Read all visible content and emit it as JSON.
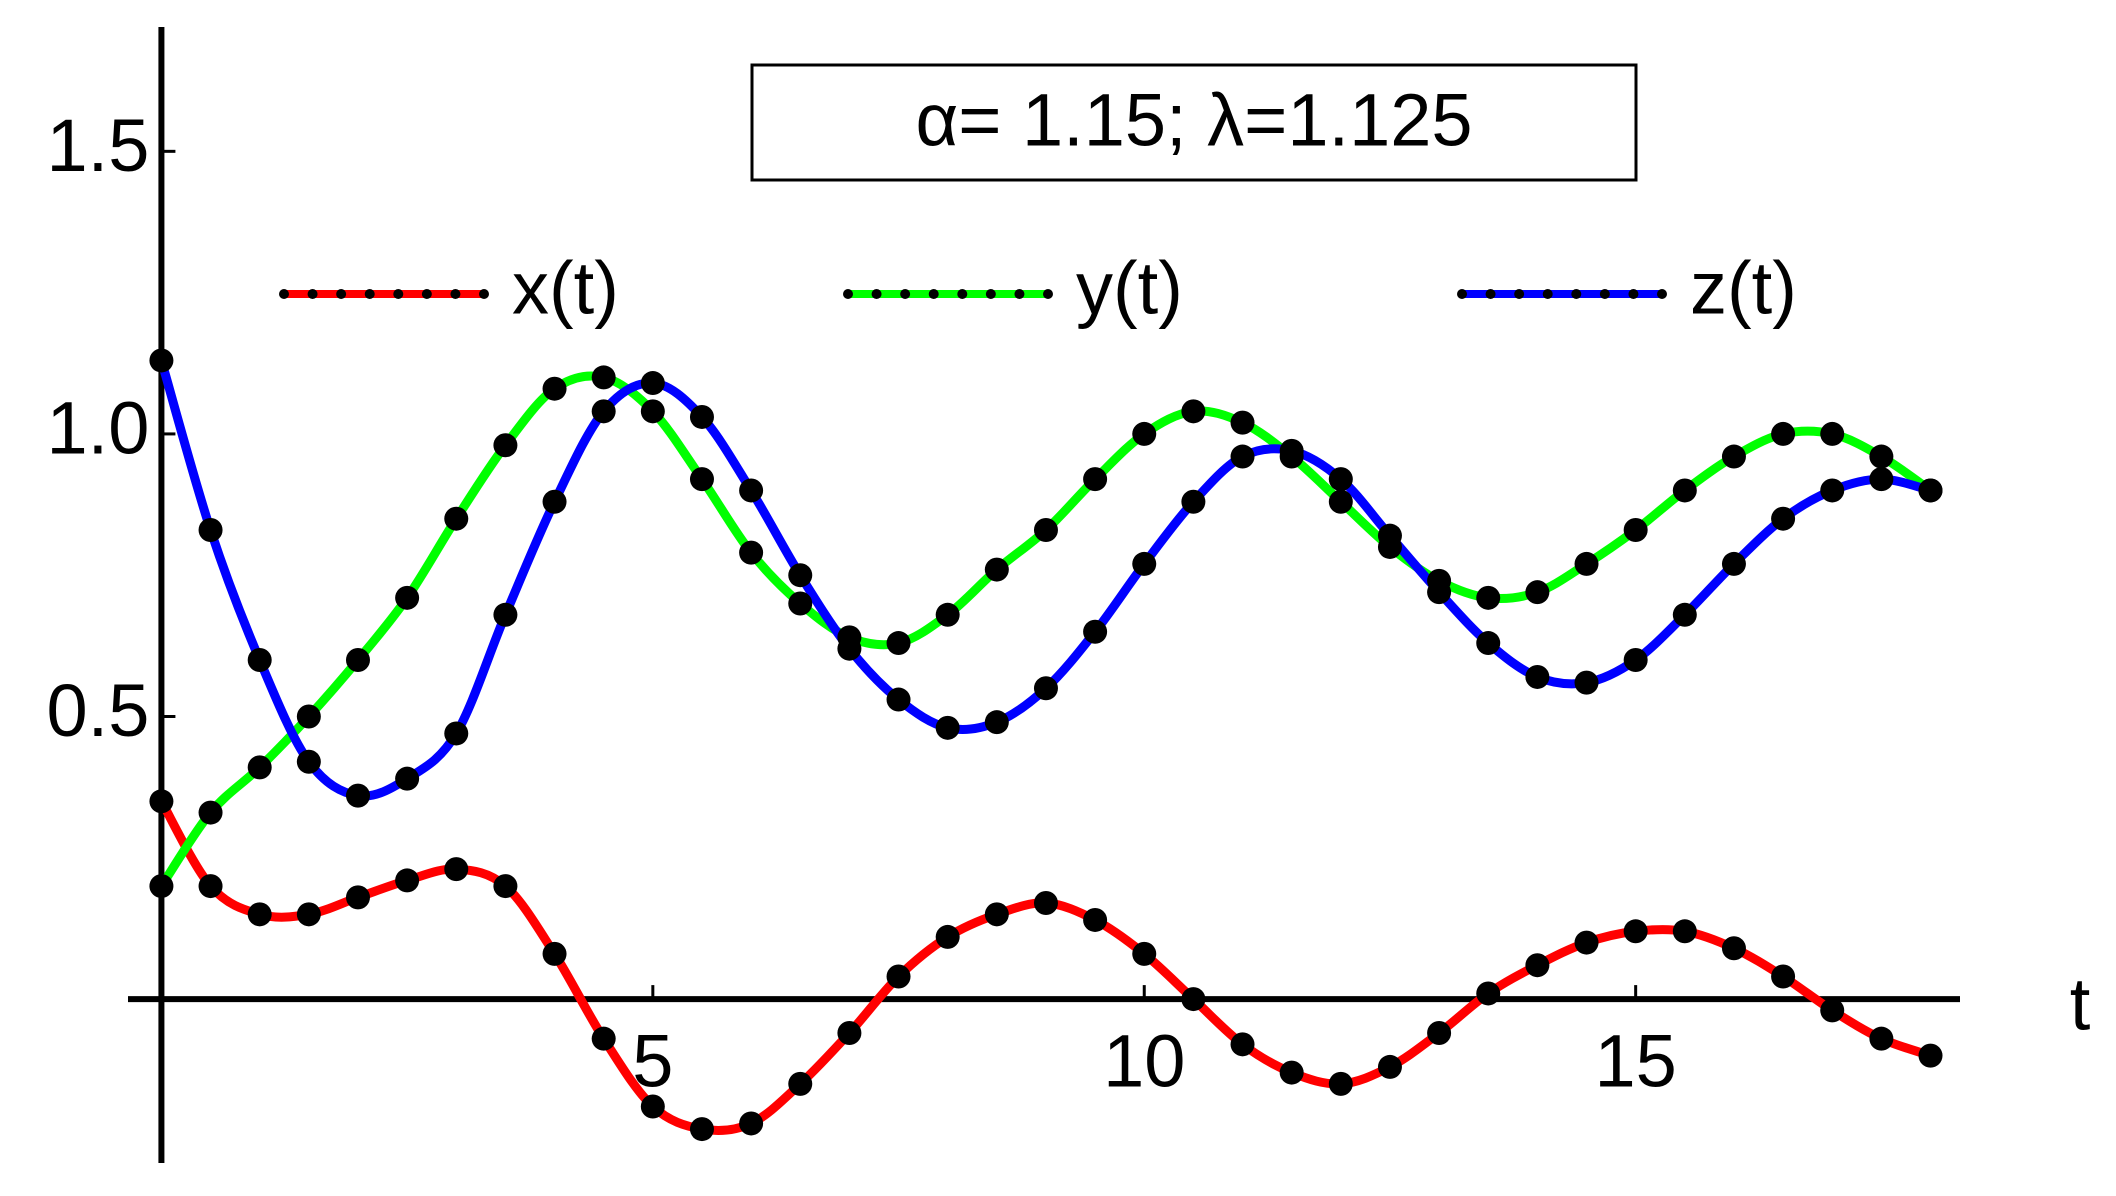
{
  "chart_data": {
    "type": "line",
    "annotation": "α= 1.15; λ=1.125",
    "x_label": "t",
    "x": [
      0,
      0.5,
      1,
      1.5,
      2,
      2.5,
      3,
      3.5,
      4,
      4.5,
      5,
      5.5,
      6,
      6.5,
      7,
      7.5,
      8,
      8.5,
      9,
      9.5,
      10,
      10.5,
      11,
      11.5,
      12,
      12.5,
      13,
      13.5,
      14,
      14.5,
      15,
      15.5,
      16,
      16.5,
      17,
      17.5,
      18
    ],
    "series": [
      {
        "name": "x(t)",
        "color": "#ff0000",
        "values": [
          0.35,
          0.2,
          0.15,
          0.15,
          0.18,
          0.21,
          0.23,
          0.2,
          0.08,
          -0.07,
          -0.19,
          -0.23,
          -0.22,
          -0.15,
          -0.06,
          0.04,
          0.11,
          0.15,
          0.17,
          0.14,
          0.08,
          0.0,
          -0.08,
          -0.13,
          -0.15,
          -0.12,
          -0.06,
          0.01,
          0.06,
          0.1,
          0.12,
          0.12,
          0.09,
          0.04,
          -0.02,
          -0.07,
          -0.1
        ]
      },
      {
        "name": "y(t)",
        "color": "#00ff00",
        "values": [
          0.2,
          0.33,
          0.41,
          0.5,
          0.6,
          0.71,
          0.85,
          0.98,
          1.08,
          1.1,
          1.04,
          0.92,
          0.79,
          0.7,
          0.64,
          0.63,
          0.68,
          0.76,
          0.83,
          0.92,
          1.0,
          1.04,
          1.02,
          0.96,
          0.88,
          0.8,
          0.74,
          0.71,
          0.72,
          0.77,
          0.83,
          0.9,
          0.96,
          1.0,
          1.0,
          0.96,
          0.9
        ]
      },
      {
        "name": "z(t)",
        "color": "#0000ff",
        "values": [
          1.13,
          0.83,
          0.6,
          0.42,
          0.36,
          0.39,
          0.47,
          0.68,
          0.88,
          1.04,
          1.09,
          1.03,
          0.9,
          0.75,
          0.62,
          0.53,
          0.48,
          0.49,
          0.55,
          0.65,
          0.77,
          0.88,
          0.96,
          0.97,
          0.92,
          0.82,
          0.72,
          0.63,
          0.57,
          0.56,
          0.6,
          0.68,
          0.77,
          0.85,
          0.9,
          0.92,
          0.9
        ]
      }
    ],
    "marker_color": "#000000",
    "xlim": [
      -0.34,
      18.3
    ],
    "ylim": [
      -0.29,
      1.72
    ],
    "xticks": [
      5,
      10,
      15
    ],
    "yticks": [
      0.5,
      {
        "value": 1,
        "label": "1.0"
      },
      1.5
    ],
    "legend": "top"
  }
}
